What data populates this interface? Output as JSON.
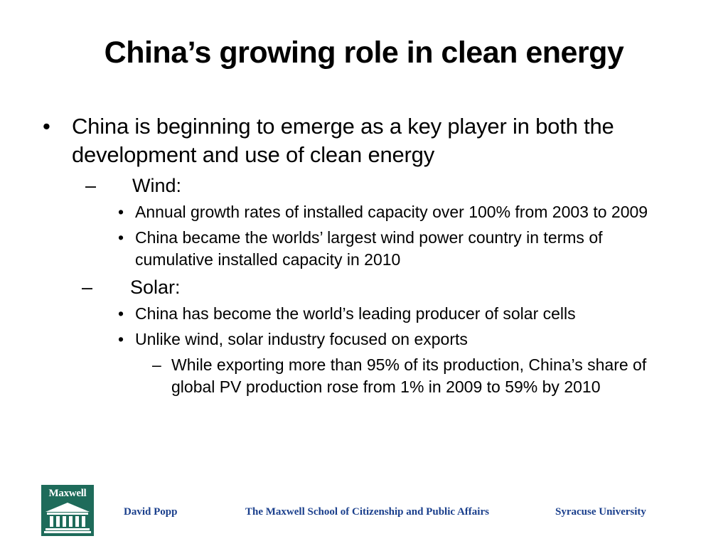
{
  "slide": {
    "title": "China’s growing role in clean energy",
    "bullets": {
      "main": {
        "marker": "•",
        "text": "China is beginning to emerge as a key player in both the development and use of clean energy"
      },
      "wind": {
        "marker": "–",
        "label": "Wind:",
        "items": [
          {
            "marker": "•",
            "text": "Annual growth rates of installed capacity over 100% from 2003 to 2009"
          },
          {
            "marker": "•",
            "text": "China became the worlds’ largest wind power country in terms of cumulative installed capacity in 2010"
          }
        ]
      },
      "solar": {
        "marker": "–",
        "label": "Solar:",
        "items": [
          {
            "marker": "•",
            "text": "China has become the world’s leading producer of solar cells"
          },
          {
            "marker": "•",
            "text": "Unlike wind, solar industry focused on exports"
          }
        ],
        "subitem": {
          "marker": "–",
          "text": "While exporting more than 95% of its production, China’s share of global PV production rose from 1% in 2009 to 59% by 2010"
        }
      }
    }
  },
  "footer": {
    "logo_text": "Maxwell",
    "author": "David Popp",
    "school": "The Maxwell School of Citizenship and Public Affairs",
    "university": "Syracuse University"
  },
  "colors": {
    "logo_green": "#1e6b5a",
    "footer_blue": "#1a3f8c"
  }
}
